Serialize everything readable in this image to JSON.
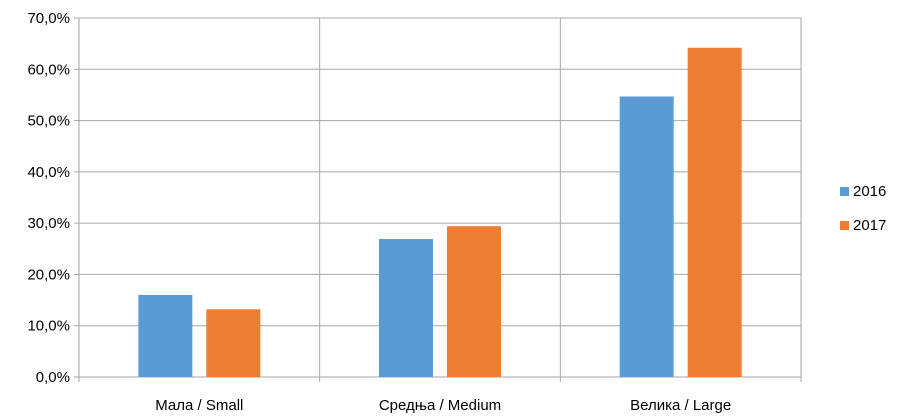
{
  "chart_data": {
    "type": "bar",
    "categories": [
      "Мала / Small",
      "Средња / Medium",
      "Велика / Large"
    ],
    "series": [
      {
        "name": "2016",
        "values": [
          16.0,
          26.9,
          54.7
        ],
        "color": "#5B9BD5"
      },
      {
        "name": "2017",
        "values": [
          13.2,
          29.4,
          64.2
        ],
        "color": "#ED7D31"
      }
    ],
    "y_ticks": [
      "0,0%",
      "10,0%",
      "20,0%",
      "30,0%",
      "40,0%",
      "50,0%",
      "60,0%",
      "70,0%"
    ],
    "ylim": [
      0,
      70
    ],
    "grid": true,
    "legend_position": "right",
    "title": "",
    "xlabel": "",
    "ylabel": ""
  }
}
